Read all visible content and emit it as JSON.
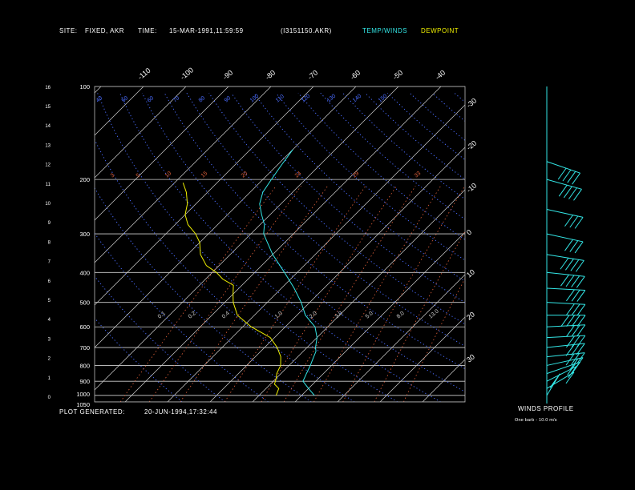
{
  "header": {
    "site_label": "SITE:",
    "site_value": "FIXED, AKR",
    "time_label": "TIME:",
    "time_value": "15-MAR-1991,11:59:59",
    "file": "(I3151150.AKR)",
    "legend_temp": "TEMP/WINDS",
    "legend_dew": "DEWPOINT"
  },
  "footer": {
    "generated_label": "PLOT GENERATED:",
    "generated_value": "20-JUN-1994,17:32:44",
    "winds_title": "WINDS PROFILE",
    "barb_note": "One barb - 10.0 m/s"
  },
  "colors": {
    "temp": "#33e6e6",
    "dewpoint": "#f0f000",
    "isobar": "#cfcfcf",
    "isotherm": "#cfcfcf",
    "dry_adiabat": "#4a6cff",
    "mixing_ratio": "#e0603a",
    "wind_barb": "#33e6e6"
  },
  "chart_data": {
    "type": "line",
    "diagram": "skew-t log-p",
    "pressure_ticks": [
      100,
      200,
      300,
      400,
      500,
      600,
      700,
      800,
      900,
      1000,
      1050
    ],
    "height_km_ticks": [
      "0",
      "1",
      "2",
      "3",
      "4",
      "5",
      "6",
      "7",
      "8",
      "9",
      "10",
      "11",
      "12",
      "13",
      "14",
      "15",
      "16"
    ],
    "top_temp_labels": [
      "-110",
      "-100",
      "-90",
      "-80",
      "-70",
      "-60",
      "-50",
      "-40"
    ],
    "right_temp_labels": [
      "-30",
      "-20",
      "-10",
      "0",
      "10",
      "20",
      "30"
    ],
    "dry_adiabat_labels": [
      "40",
      "50",
      "60",
      "70",
      "80",
      "90",
      "100",
      "110",
      "120",
      "130",
      "140",
      "150"
    ],
    "mixing_ratio_labels": [
      "3",
      "5",
      "10",
      "15",
      "20",
      "24",
      "29",
      "33"
    ],
    "lower_labels": [
      "0.1",
      "0.2",
      "0.4",
      "1.0",
      "2.0",
      "3.0",
      "5.0",
      "8.0",
      "13.0"
    ],
    "temperature": {
      "name": "TEMP/WINDS",
      "points": [
        [
          1000,
          3
        ],
        [
          950,
          0
        ],
        [
          900,
          -3
        ],
        [
          850,
          -4
        ],
        [
          800,
          -5
        ],
        [
          760,
          -6
        ],
        [
          720,
          -7
        ],
        [
          700,
          -8
        ],
        [
          650,
          -10
        ],
        [
          600,
          -13
        ],
        [
          550,
          -18
        ],
        [
          500,
          -22
        ],
        [
          450,
          -27
        ],
        [
          400,
          -33
        ],
        [
          350,
          -40
        ],
        [
          300,
          -47
        ],
        [
          280,
          -49
        ],
        [
          260,
          -52
        ],
        [
          240,
          -55
        ],
        [
          220,
          -57
        ],
        [
          200,
          -58
        ],
        [
          180,
          -59
        ],
        [
          160,
          -60
        ]
      ]
    },
    "dewpoint": {
      "name": "DEWPOINT",
      "points": [
        [
          1000,
          -6
        ],
        [
          950,
          -7
        ],
        [
          920,
          -9
        ],
        [
          880,
          -10
        ],
        [
          850,
          -11
        ],
        [
          800,
          -12
        ],
        [
          750,
          -14
        ],
        [
          700,
          -17
        ],
        [
          650,
          -21
        ],
        [
          600,
          -28
        ],
        [
          550,
          -34
        ],
        [
          500,
          -38
        ],
        [
          470,
          -40
        ],
        [
          440,
          -42
        ],
        [
          420,
          -46
        ],
        [
          400,
          -49
        ],
        [
          380,
          -53
        ],
        [
          350,
          -57
        ],
        [
          320,
          -60
        ],
        [
          300,
          -63
        ],
        [
          280,
          -67
        ],
        [
          260,
          -70
        ],
        [
          240,
          -72
        ],
        [
          220,
          -75
        ],
        [
          205,
          -78
        ]
      ]
    },
    "winds": {
      "pressures": [
        1000,
        950,
        900,
        850,
        800,
        750,
        700,
        650,
        600,
        550,
        500,
        450,
        400,
        350,
        300,
        250,
        200,
        175
      ],
      "speed_ms": [
        15,
        10,
        10,
        15,
        20,
        25,
        25,
        30,
        30,
        35,
        30,
        30,
        40,
        40,
        30,
        30,
        40,
        40
      ],
      "direction_deg": [
        200,
        225,
        230,
        240,
        250,
        260,
        260,
        265,
        265,
        270,
        275,
        275,
        280,
        285,
        290,
        290,
        295,
        300
      ]
    }
  }
}
